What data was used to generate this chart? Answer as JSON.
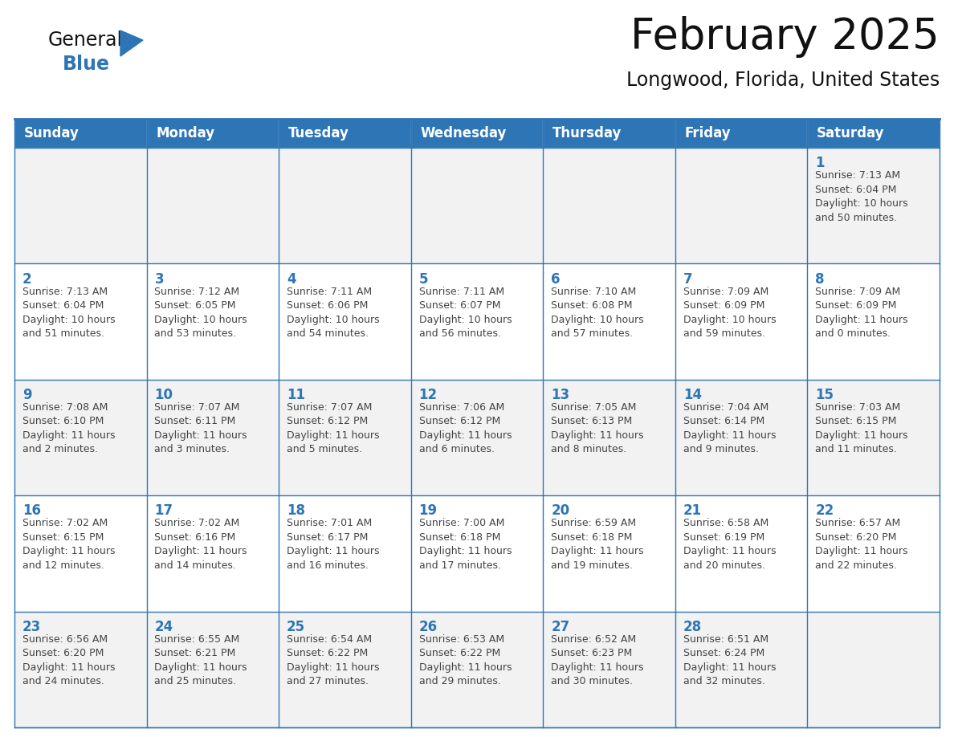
{
  "title": "February 2025",
  "subtitle": "Longwood, Florida, United States",
  "header_bg": "#2E75B6",
  "header_text_color": "#FFFFFF",
  "cell_bg_even": "#F2F2F2",
  "cell_bg_odd": "#FFFFFF",
  "cell_text_color": "#444444",
  "day_number_color": "#2E75B6",
  "border_color": "#2E75B6",
  "days_of_week": [
    "Sunday",
    "Monday",
    "Tuesday",
    "Wednesday",
    "Thursday",
    "Friday",
    "Saturday"
  ],
  "calendar_data": [
    [
      null,
      null,
      null,
      null,
      null,
      null,
      {
        "day": 1,
        "sunrise": "7:13 AM",
        "sunset": "6:04 PM",
        "daylight": "10 hours\nand 50 minutes."
      }
    ],
    [
      {
        "day": 2,
        "sunrise": "7:13 AM",
        "sunset": "6:04 PM",
        "daylight": "10 hours\nand 51 minutes."
      },
      {
        "day": 3,
        "sunrise": "7:12 AM",
        "sunset": "6:05 PM",
        "daylight": "10 hours\nand 53 minutes."
      },
      {
        "day": 4,
        "sunrise": "7:11 AM",
        "sunset": "6:06 PM",
        "daylight": "10 hours\nand 54 minutes."
      },
      {
        "day": 5,
        "sunrise": "7:11 AM",
        "sunset": "6:07 PM",
        "daylight": "10 hours\nand 56 minutes."
      },
      {
        "day": 6,
        "sunrise": "7:10 AM",
        "sunset": "6:08 PM",
        "daylight": "10 hours\nand 57 minutes."
      },
      {
        "day": 7,
        "sunrise": "7:09 AM",
        "sunset": "6:09 PM",
        "daylight": "10 hours\nand 59 minutes."
      },
      {
        "day": 8,
        "sunrise": "7:09 AM",
        "sunset": "6:09 PM",
        "daylight": "11 hours\nand 0 minutes."
      }
    ],
    [
      {
        "day": 9,
        "sunrise": "7:08 AM",
        "sunset": "6:10 PM",
        "daylight": "11 hours\nand 2 minutes."
      },
      {
        "day": 10,
        "sunrise": "7:07 AM",
        "sunset": "6:11 PM",
        "daylight": "11 hours\nand 3 minutes."
      },
      {
        "day": 11,
        "sunrise": "7:07 AM",
        "sunset": "6:12 PM",
        "daylight": "11 hours\nand 5 minutes."
      },
      {
        "day": 12,
        "sunrise": "7:06 AM",
        "sunset": "6:12 PM",
        "daylight": "11 hours\nand 6 minutes."
      },
      {
        "day": 13,
        "sunrise": "7:05 AM",
        "sunset": "6:13 PM",
        "daylight": "11 hours\nand 8 minutes."
      },
      {
        "day": 14,
        "sunrise": "7:04 AM",
        "sunset": "6:14 PM",
        "daylight": "11 hours\nand 9 minutes."
      },
      {
        "day": 15,
        "sunrise": "7:03 AM",
        "sunset": "6:15 PM",
        "daylight": "11 hours\nand 11 minutes."
      }
    ],
    [
      {
        "day": 16,
        "sunrise": "7:02 AM",
        "sunset": "6:15 PM",
        "daylight": "11 hours\nand 12 minutes."
      },
      {
        "day": 17,
        "sunrise": "7:02 AM",
        "sunset": "6:16 PM",
        "daylight": "11 hours\nand 14 minutes."
      },
      {
        "day": 18,
        "sunrise": "7:01 AM",
        "sunset": "6:17 PM",
        "daylight": "11 hours\nand 16 minutes."
      },
      {
        "day": 19,
        "sunrise": "7:00 AM",
        "sunset": "6:18 PM",
        "daylight": "11 hours\nand 17 minutes."
      },
      {
        "day": 20,
        "sunrise": "6:59 AM",
        "sunset": "6:18 PM",
        "daylight": "11 hours\nand 19 minutes."
      },
      {
        "day": 21,
        "sunrise": "6:58 AM",
        "sunset": "6:19 PM",
        "daylight": "11 hours\nand 20 minutes."
      },
      {
        "day": 22,
        "sunrise": "6:57 AM",
        "sunset": "6:20 PM",
        "daylight": "11 hours\nand 22 minutes."
      }
    ],
    [
      {
        "day": 23,
        "sunrise": "6:56 AM",
        "sunset": "6:20 PM",
        "daylight": "11 hours\nand 24 minutes."
      },
      {
        "day": 24,
        "sunrise": "6:55 AM",
        "sunset": "6:21 PM",
        "daylight": "11 hours\nand 25 minutes."
      },
      {
        "day": 25,
        "sunrise": "6:54 AM",
        "sunset": "6:22 PM",
        "daylight": "11 hours\nand 27 minutes."
      },
      {
        "day": 26,
        "sunrise": "6:53 AM",
        "sunset": "6:22 PM",
        "daylight": "11 hours\nand 29 minutes."
      },
      {
        "day": 27,
        "sunrise": "6:52 AM",
        "sunset": "6:23 PM",
        "daylight": "11 hours\nand 30 minutes."
      },
      {
        "day": 28,
        "sunrise": "6:51 AM",
        "sunset": "6:24 PM",
        "daylight": "11 hours\nand 32 minutes."
      },
      null
    ]
  ],
  "title_fontsize": 38,
  "subtitle_fontsize": 17,
  "header_fontsize": 12,
  "day_number_fontsize": 12,
  "cell_text_fontsize": 9,
  "logo_general_fontsize": 17,
  "logo_blue_fontsize": 17
}
